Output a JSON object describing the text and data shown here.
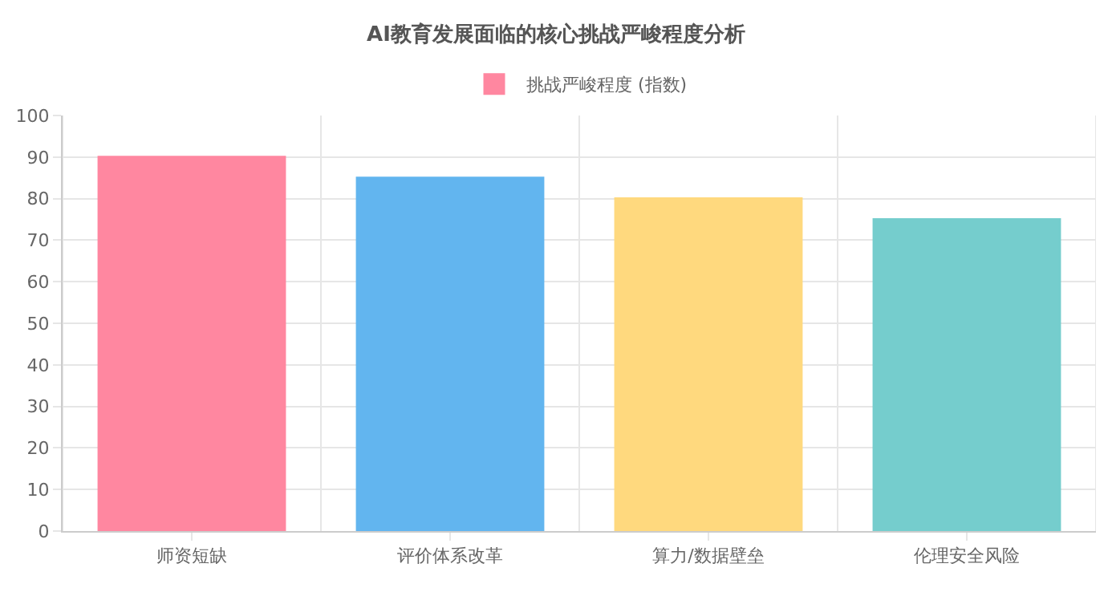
{
  "chart_data": {
    "type": "bar",
    "title": "AI教育发展面临的核心挑战严峻程度分析",
    "categories": [
      "师资短缺",
      "评价体系改革",
      "算力/数据壁垒",
      "伦理安全风险"
    ],
    "series": [
      {
        "name": "挑战严峻程度 (指数)",
        "colors": [
          "#ff87a0",
          "#62b5ef",
          "#ffd97e",
          "#75cdcd"
        ],
        "values": [
          90,
          85,
          80,
          75
        ]
      }
    ],
    "ylim": [
      0,
      100
    ],
    "yticks": [
      0,
      10,
      20,
      30,
      40,
      50,
      60,
      70,
      80,
      90,
      100
    ],
    "grid": true,
    "legend": "top"
  }
}
